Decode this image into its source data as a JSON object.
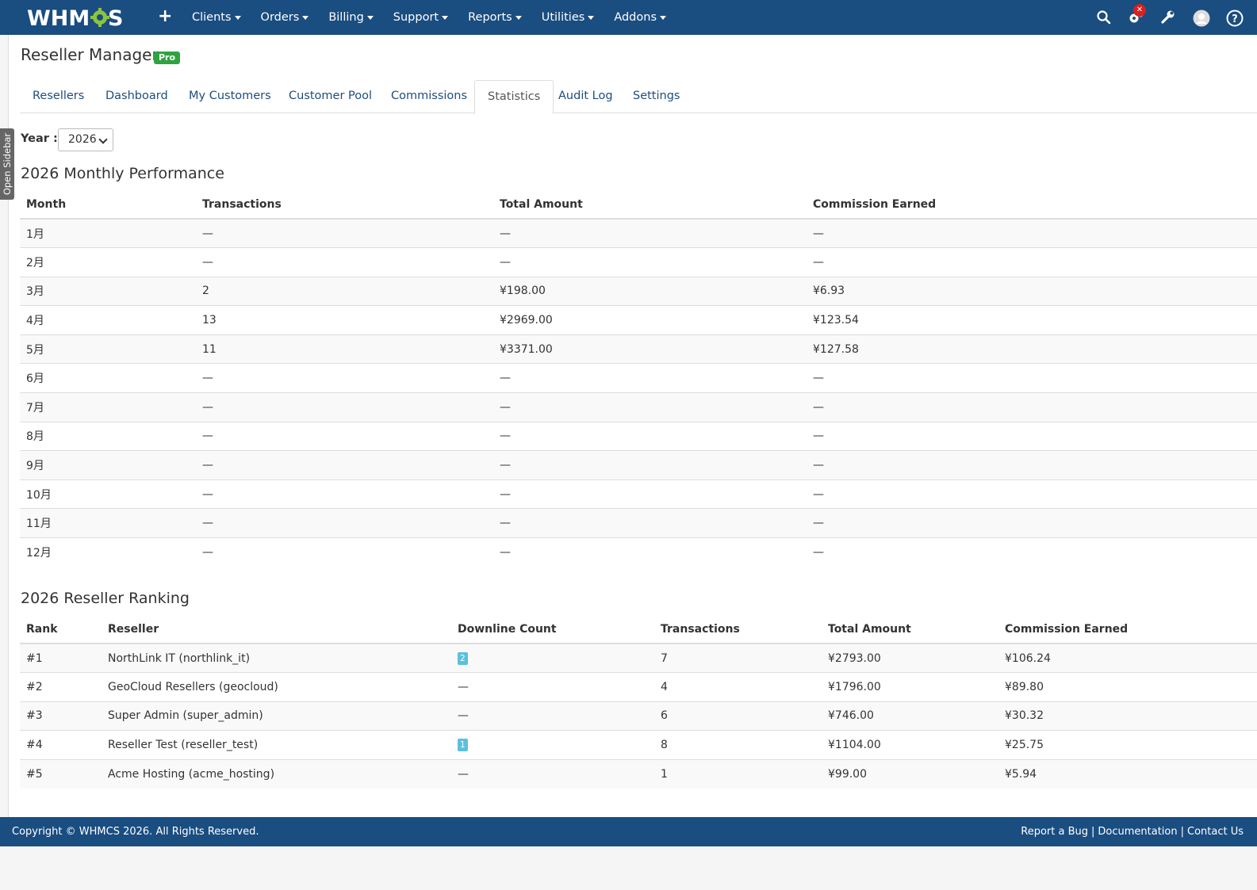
{
  "nav": {
    "logo_text": "WHMCS",
    "add_icon": "plus-icon",
    "menu": [
      "Clients",
      "Orders",
      "Billing",
      "Support",
      "Reports",
      "Utilities",
      "Addons"
    ],
    "icons": [
      "search-icon",
      "gears-icon",
      "wrench-icon",
      "user-avatar-icon",
      "help-icon"
    ],
    "notification_badge": "✕",
    "accent": "#1a4d80"
  },
  "sidebar": {
    "label": "Open Sidebar"
  },
  "page": {
    "title": "Reseller Manager",
    "badge": "Pro",
    "badge_color": "#2fa340"
  },
  "tabs": [
    {
      "label": "Resellers",
      "active": false
    },
    {
      "label": "Dashboard",
      "active": false
    },
    {
      "label": "My Customers",
      "active": false
    },
    {
      "label": "Customer Pool",
      "active": false
    },
    {
      "label": "Commissions",
      "active": false
    },
    {
      "label": "Statistics",
      "active": true
    },
    {
      "label": "Audit Log",
      "active": false
    },
    {
      "label": "Settings",
      "active": false
    }
  ],
  "year_filter": {
    "label": "Year :",
    "value": "2026"
  },
  "monthly": {
    "title": "2026 Monthly Performance",
    "headers": [
      "Month",
      "Transactions",
      "Total Amount",
      "Commission Earned"
    ],
    "rows": [
      [
        "1月",
        "—",
        "—",
        "—"
      ],
      [
        "2月",
        "—",
        "—",
        "—"
      ],
      [
        "3月",
        "2",
        "¥198.00",
        "¥6.93"
      ],
      [
        "4月",
        "13",
        "¥2969.00",
        "¥123.54"
      ],
      [
        "5月",
        "11",
        "¥3371.00",
        "¥127.58"
      ],
      [
        "6月",
        "—",
        "—",
        "—"
      ],
      [
        "7月",
        "—",
        "—",
        "—"
      ],
      [
        "8月",
        "—",
        "—",
        "—"
      ],
      [
        "9月",
        "—",
        "—",
        "—"
      ],
      [
        "10月",
        "—",
        "—",
        "—"
      ],
      [
        "11月",
        "—",
        "—",
        "—"
      ],
      [
        "12月",
        "—",
        "—",
        "—"
      ]
    ]
  },
  "ranking": {
    "title": "2026 Reseller Ranking",
    "headers": [
      "Rank",
      "Reseller",
      "Downline Count",
      "Transactions",
      "Total Amount",
      "Commission Earned"
    ],
    "rows": [
      {
        "rank": "#1",
        "reseller": "NorthLink IT (northlink_it)",
        "downline": "2",
        "downline_badge": true,
        "transactions": "7",
        "total": "¥2793.00",
        "commission": "¥106.24"
      },
      {
        "rank": "#2",
        "reseller": "GeoCloud Resellers (geocloud)",
        "downline": "—",
        "downline_badge": false,
        "transactions": "4",
        "total": "¥1796.00",
        "commission": "¥89.80"
      },
      {
        "rank": "#3",
        "reseller": "Super Admin (super_admin)",
        "downline": "—",
        "downline_badge": false,
        "transactions": "6",
        "total": "¥746.00",
        "commission": "¥30.32"
      },
      {
        "rank": "#4",
        "reseller": "Reseller Test (reseller_test)",
        "downline": "1",
        "downline_badge": true,
        "transactions": "8",
        "total": "¥1104.00",
        "commission": "¥25.75"
      },
      {
        "rank": "#5",
        "reseller": "Acme Hosting (acme_hosting)",
        "downline": "—",
        "downline_badge": false,
        "transactions": "1",
        "total": "¥99.00",
        "commission": "¥5.94"
      }
    ]
  },
  "footer": {
    "copyright": "Copyright © WHMCS 2026. All Rights Reserved.",
    "links": [
      "Report a Bug",
      "Documentation",
      "Contact Us"
    ]
  }
}
